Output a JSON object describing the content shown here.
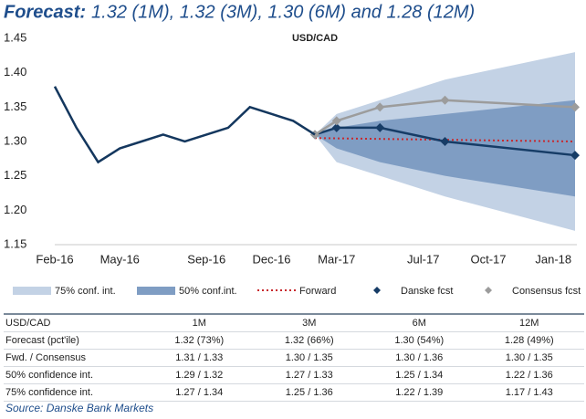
{
  "chart_data": {
    "type": "line",
    "title_label": "Forecast:",
    "title": "1.32 (1M), 1.32 (3M), 1.30 (6M) and 1.28 (12M)",
    "subtitle": "USD/CAD",
    "xlim": [
      "2016-02",
      "2018-02"
    ],
    "xticks": [
      {
        "value": "2016-02",
        "label": "Feb-16"
      },
      {
        "value": "2016-05",
        "label": "May-16"
      },
      {
        "value": "2016-09",
        "label": "Sep-16"
      },
      {
        "value": "2016-12",
        "label": "Dec-16"
      },
      {
        "value": "2017-03",
        "label": "Mar-17"
      },
      {
        "value": "2017-07",
        "label": "Jul-17"
      },
      {
        "value": "2017-10",
        "label": "Oct-17"
      },
      {
        "value": "2018-01",
        "label": "Jan-18"
      }
    ],
    "ylim": [
      1.15,
      1.45
    ],
    "yticks": [
      {
        "value": 1.15,
        "label": "1.15"
      },
      {
        "value": 1.2,
        "label": "1.20"
      },
      {
        "value": 1.25,
        "label": "1.25"
      },
      {
        "value": 1.3,
        "label": "1.30"
      },
      {
        "value": 1.35,
        "label": "1.35"
      },
      {
        "value": 1.4,
        "label": "1.40"
      },
      {
        "value": 1.45,
        "label": "1.45"
      }
    ],
    "series": [
      {
        "name": "75% conf. int.",
        "style": "band",
        "color": "#c3d2e5",
        "x": [
          "2017-02",
          "2017-03",
          "2017-05",
          "2017-08",
          "2018-02"
        ],
        "low": [
          1.31,
          1.27,
          1.25,
          1.22,
          1.17
        ],
        "high": [
          1.31,
          1.34,
          1.36,
          1.39,
          1.43
        ]
      },
      {
        "name": "50% conf.int.",
        "style": "band",
        "color": "#7f9dc3",
        "x": [
          "2017-02",
          "2017-03",
          "2017-05",
          "2017-08",
          "2018-02"
        ],
        "low": [
          1.31,
          1.29,
          1.27,
          1.25,
          1.22
        ],
        "high": [
          1.31,
          1.32,
          1.33,
          1.34,
          1.36
        ]
      },
      {
        "name": "Forward",
        "style": "dotted",
        "color": "#c8282d",
        "x": [
          "2017-02",
          "2018-02"
        ],
        "values": [
          1.305,
          1.3
        ]
      },
      {
        "name": "Danske fcst",
        "style": "line",
        "marker": "diamond",
        "color": "#163c66",
        "x": [
          "2017-02",
          "2017-03",
          "2017-05",
          "2017-08",
          "2018-02"
        ],
        "values": [
          1.31,
          1.32,
          1.32,
          1.3,
          1.28
        ]
      },
      {
        "name": "Consensus fcst",
        "style": "line",
        "marker": "diamond",
        "color": "#9c9c9c",
        "x": [
          "2017-02",
          "2017-03",
          "2017-05",
          "2017-08",
          "2018-02"
        ],
        "values": [
          1.31,
          1.33,
          1.35,
          1.36,
          1.35
        ]
      },
      {
        "style": "line",
        "color": "#14375e",
        "x": [
          "2016-02",
          "2016-03",
          "2016-04",
          "2016-05",
          "2016-06",
          "2016-07",
          "2016-08",
          "2016-09",
          "2016-10",
          "2016-11",
          "2016-12",
          "2017-01",
          "2017-02"
        ],
        "values": [
          1.38,
          1.32,
          1.27,
          1.29,
          1.3,
          1.31,
          1.3,
          1.31,
          1.32,
          1.35,
          1.34,
          1.33,
          1.31
        ]
      }
    ]
  },
  "table": {
    "header": [
      "USD/CAD",
      "1M",
      "3M",
      "6M",
      "12M"
    ],
    "rows": [
      [
        "Forecast (pct'ile)",
        "1.32 (73%)",
        "1.32 (66%)",
        "1.30 (54%)",
        "1.28 (49%)"
      ],
      [
        "Fwd. / Consensus",
        "1.31 / 1.33",
        "1.30 / 1.35",
        "1.30 / 1.36",
        "1.30 / 1.35"
      ],
      [
        "50% confidence int.",
        "1.29 / 1.32",
        "1.27 / 1.33",
        "1.25 / 1.34",
        "1.22 / 1.36"
      ],
      [
        "75% confidence int.",
        "1.27 / 1.34",
        "1.25 / 1.36",
        "1.22 / 1.39",
        "1.17 / 1.43"
      ]
    ]
  },
  "source": "Source: Danske Bank Markets"
}
